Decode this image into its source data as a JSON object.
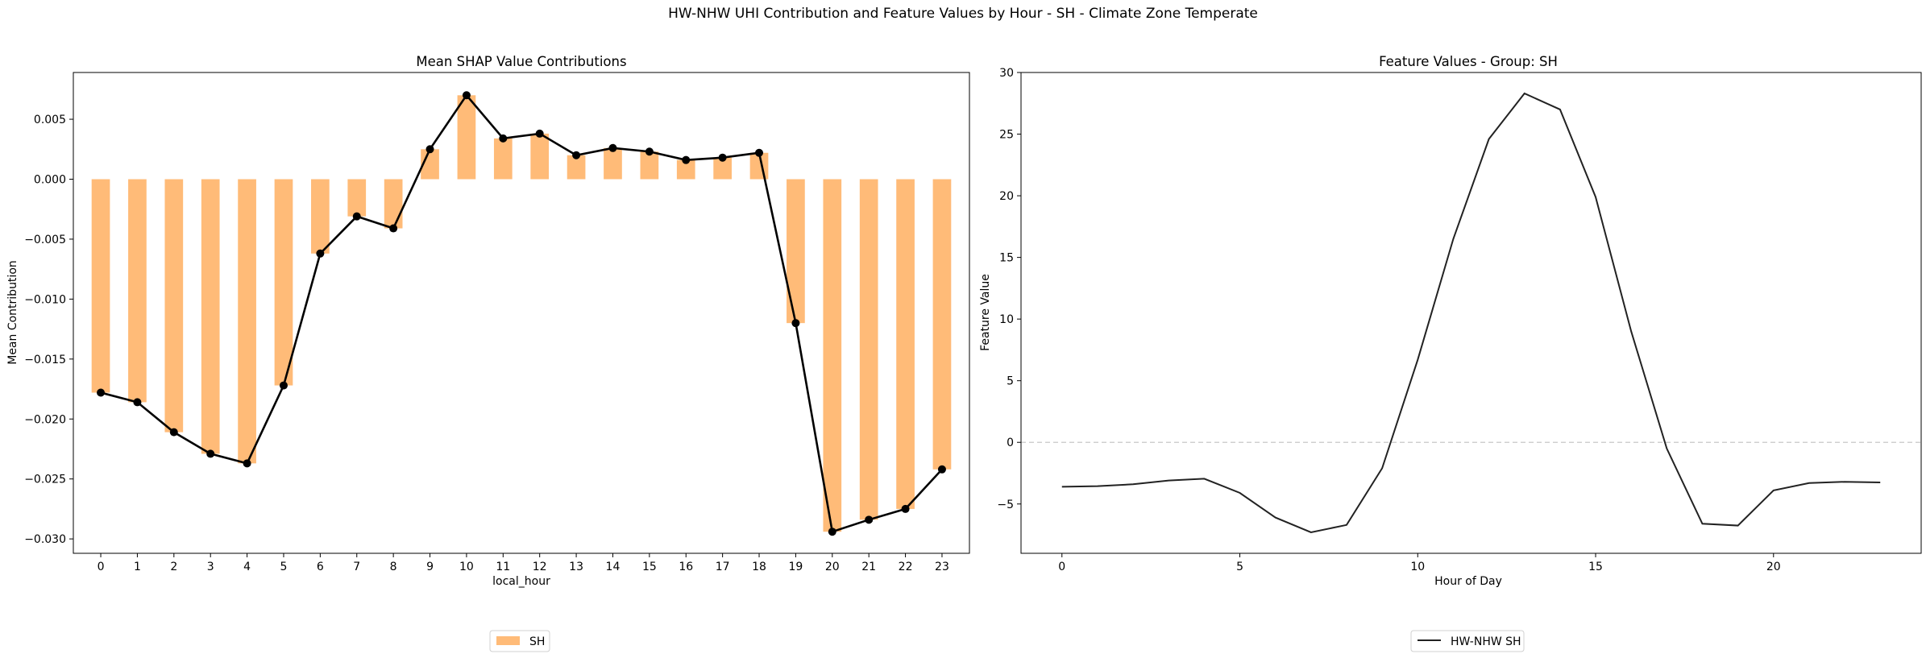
{
  "figure": {
    "suptitle": "HW-NHW UHI Contribution and Feature Values by Hour - SH - Climate Zone Temperate"
  },
  "chart_data": [
    {
      "type": "bar",
      "title": "Mean SHAP Value Contributions",
      "xlabel": "local_hour",
      "ylabel": "Mean Contribution",
      "categories": [
        "0",
        "1",
        "2",
        "3",
        "4",
        "5",
        "6",
        "7",
        "8",
        "9",
        "10",
        "11",
        "12",
        "13",
        "14",
        "15",
        "16",
        "17",
        "18",
        "19",
        "20",
        "21",
        "22",
        "23"
      ],
      "series": [
        {
          "name": "SH",
          "color": "#ffbb78",
          "values": [
            -0.0178,
            -0.0186,
            -0.0211,
            -0.0229,
            -0.0237,
            -0.0172,
            -0.0062,
            -0.0031,
            -0.0041,
            0.0025,
            0.007,
            0.0034,
            0.0038,
            0.002,
            0.0026,
            0.0023,
            0.0016,
            0.0018,
            0.0022,
            -0.012,
            -0.0294,
            -0.0284,
            -0.0275,
            -0.0242
          ]
        }
      ],
      "overlay_line": {
        "color": "#000000",
        "marker": "circle",
        "values": [
          -0.0178,
          -0.0186,
          -0.0211,
          -0.0229,
          -0.0237,
          -0.0172,
          -0.0062,
          -0.0031,
          -0.0041,
          0.0025,
          0.007,
          0.0034,
          0.0038,
          0.002,
          0.0026,
          0.0023,
          0.0016,
          0.0018,
          0.0022,
          -0.012,
          -0.0294,
          -0.0284,
          -0.0275,
          -0.0242
        ]
      },
      "ylim": [
        -0.0312,
        0.0089
      ],
      "yticks": [
        -0.03,
        -0.025,
        -0.02,
        -0.015,
        -0.01,
        -0.005,
        0.0,
        0.005
      ],
      "ytick_labels": [
        "−0.030",
        "−0.025",
        "−0.020",
        "−0.015",
        "−0.010",
        "−0.005",
        "0.000",
        "0.005"
      ],
      "legend": {
        "placement": "bottom-center",
        "entries": [
          "SH"
        ]
      },
      "grid": false
    },
    {
      "type": "line",
      "title": "Feature Values - Group: SH",
      "xlabel": "Hour of Day",
      "ylabel": "Feature Value",
      "series": [
        {
          "name": "HW-NHW SH",
          "color": "#222222",
          "x": [
            0,
            1,
            2,
            3,
            4,
            5,
            6,
            7,
            8,
            9,
            10,
            11,
            12,
            13,
            14,
            15,
            16,
            17,
            18,
            19,
            20,
            21,
            22,
            23
          ],
          "values": [
            -3.6,
            -3.55,
            -3.4,
            -3.1,
            -2.95,
            -4.1,
            -6.1,
            -7.3,
            -6.7,
            -2.1,
            6.7,
            16.5,
            24.6,
            28.3,
            27.0,
            19.9,
            9.0,
            -0.5,
            -6.6,
            -6.75,
            -3.9,
            -3.3,
            -3.2,
            -3.25
          ]
        }
      ],
      "xlim": [
        -1.15,
        24.15
      ],
      "ylim": [
        -9.0,
        30.0
      ],
      "xticks": [
        0,
        5,
        10,
        15,
        20
      ],
      "xtick_labels": [
        "0",
        "5",
        "10",
        "15",
        "20"
      ],
      "yticks": [
        -5,
        0,
        5,
        10,
        15,
        20,
        25,
        30
      ],
      "ytick_labels": [
        "−5",
        "0",
        "5",
        "10",
        "15",
        "20",
        "25",
        "30"
      ],
      "reference_line": {
        "y": 0,
        "style": "dashed",
        "color": "#c8c8c8"
      },
      "legend": {
        "placement": "bottom-center",
        "entries": [
          "HW-NHW SH"
        ]
      },
      "grid": false
    }
  ]
}
